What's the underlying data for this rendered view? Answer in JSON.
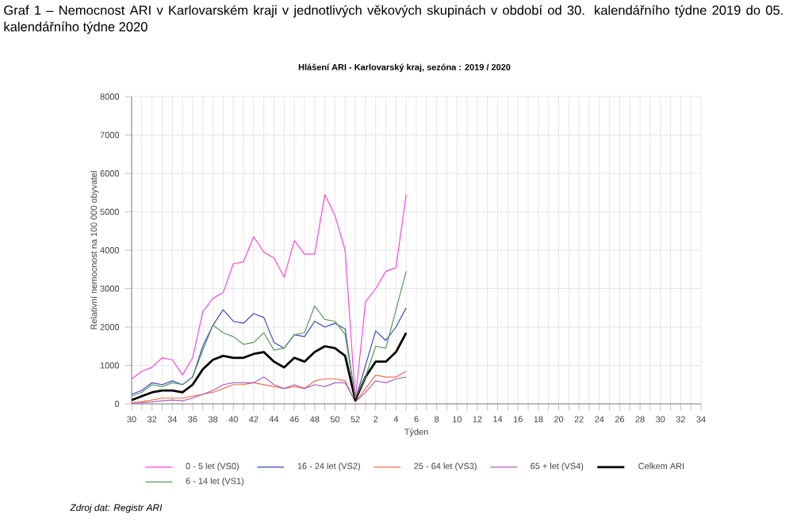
{
  "chart_data": {
    "type": "line",
    "title": "Graf 1 – Nemocnost ARI v Karlovarském kraji v jednotlivých věkových skupinách v období od 30. kalendářního týdne 2019 do 05. kalendářního týdne 2020",
    "subtitle": "Hlášení ARI  -  Karlovarský kraj, sezóna : 2019 / 2020",
    "xlabel": "Týden",
    "ylabel": "Relativní nemocnost na 100 000 obyvatel",
    "annotations": [
      "Zdroj dat: Registr ARI"
    ],
    "categories": [
      "30",
      null,
      "32",
      null,
      "34",
      null,
      "36",
      null,
      "38",
      null,
      "40",
      null,
      "42",
      null,
      "44",
      null,
      "46",
      null,
      "48",
      null,
      "50",
      null,
      "52",
      null,
      "2",
      null,
      "4",
      null,
      "6",
      null,
      "8",
      null,
      "10",
      null,
      "12",
      null,
      "14",
      null,
      "16",
      null,
      "18",
      null,
      "20",
      null,
      "22",
      null,
      "24",
      null,
      "26",
      null,
      "28",
      null,
      "30",
      null,
      "32",
      null,
      "34"
    ],
    "ylim": [
      0,
      8000
    ],
    "yticks": [
      0,
      1000,
      2000,
      3000,
      4000,
      5000,
      6000,
      7000,
      8000
    ],
    "grid": true,
    "legend": "bottom",
    "marker": "none",
    "line_style": "solid",
    "series": [
      {
        "name": "0 - 5 let (VS0)",
        "color": "#ff44dd",
        "values": [
          650,
          850,
          950,
          1200,
          1150,
          750,
          1200,
          2400,
          2750,
          2900,
          3650,
          3700,
          4350,
          3950,
          3800,
          3300,
          4250,
          3900,
          3900,
          5450,
          4900,
          4000,
          100,
          2650,
          3000,
          3450,
          3550,
          5450,
          null,
          null,
          null,
          null,
          null,
          null,
          null,
          null,
          null,
          null,
          null,
          null,
          null,
          null,
          null,
          null,
          null,
          null,
          null,
          null,
          null,
          null,
          null,
          null,
          null,
          null,
          null,
          null,
          null
        ]
      },
      {
        "name": "16 - 24 let (VS2)",
        "color": "#3a48c0",
        "values": [
          250,
          350,
          550,
          500,
          600,
          500,
          700,
          1500,
          2050,
          2450,
          2150,
          2100,
          2350,
          2250,
          1600,
          1450,
          1800,
          1750,
          2150,
          2000,
          2100,
          1950,
          100,
          1000,
          1900,
          1650,
          2000,
          2500,
          null,
          null,
          null,
          null,
          null,
          null,
          null,
          null,
          null,
          null,
          null,
          null,
          null,
          null,
          null,
          null,
          null,
          null,
          null,
          null,
          null,
          null,
          null,
          null,
          null,
          null,
          null,
          null,
          null
        ]
      },
      {
        "name": "25 - 64 let (VS3)",
        "color": "#f07050",
        "values": [
          30,
          60,
          100,
          150,
          150,
          150,
          200,
          250,
          300,
          400,
          500,
          500,
          550,
          500,
          450,
          400,
          450,
          400,
          600,
          650,
          650,
          600,
          50,
          400,
          750,
          700,
          700,
          850,
          null,
          null,
          null,
          null,
          null,
          null,
          null,
          null,
          null,
          null,
          null,
          null,
          null,
          null,
          null,
          null,
          null,
          null,
          null,
          null,
          null,
          null,
          null,
          null,
          null,
          null,
          null,
          null,
          null
        ]
      },
      {
        "name": "65 + let (VS4)",
        "color": "#b060c0",
        "values": [
          0,
          30,
          50,
          80,
          100,
          80,
          150,
          250,
          350,
          500,
          550,
          550,
          550,
          700,
          500,
          400,
          500,
          400,
          500,
          450,
          550,
          550,
          50,
          300,
          600,
          550,
          650,
          700,
          null,
          null,
          null,
          null,
          null,
          null,
          null,
          null,
          null,
          null,
          null,
          null,
          null,
          null,
          null,
          null,
          null,
          null,
          null,
          null,
          null,
          null,
          null,
          null,
          null,
          null,
          null,
          null,
          null
        ]
      },
      {
        "name": "Celkem ARI",
        "color": "#000000",
        "values": [
          100,
          200,
          300,
          350,
          350,
          300,
          500,
          900,
          1150,
          1250,
          1200,
          1200,
          1300,
          1350,
          1100,
          950,
          1200,
          1100,
          1350,
          1500,
          1450,
          1250,
          100,
          700,
          1100,
          1100,
          1350,
          1850,
          null,
          null,
          null,
          null,
          null,
          null,
          null,
          null,
          null,
          null,
          null,
          null,
          null,
          null,
          null,
          null,
          null,
          null,
          null,
          null,
          null,
          null,
          null,
          null,
          null,
          null,
          null,
          null,
          null
        ]
      },
      {
        "name": "6 - 14 let (VS1)",
        "color": "#5a9a5a",
        "values": [
          200,
          300,
          500,
          450,
          550,
          500,
          700,
          1400,
          2050,
          1850,
          1750,
          1550,
          1600,
          1850,
          1400,
          1450,
          1800,
          1850,
          2550,
          2200,
          2150,
          1800,
          150,
          700,
          1500,
          1450,
          2450,
          3450,
          null,
          null,
          null,
          null,
          null,
          null,
          null,
          null,
          null,
          null,
          null,
          null,
          null,
          null,
          null,
          null,
          null,
          null,
          null,
          null,
          null,
          null,
          null,
          null,
          null,
          null,
          null,
          null,
          null
        ]
      }
    ]
  }
}
